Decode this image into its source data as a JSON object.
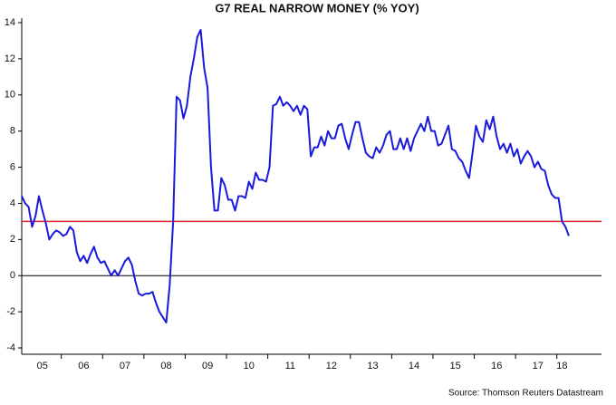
{
  "chart_data": {
    "type": "line",
    "title": "G7 REAL NARROW MONEY (% YOY)",
    "source": "Source: Thomson Reuters Datastream",
    "categories": [
      null,
      null,
      null,
      null,
      null,
      null,
      "05",
      null,
      null,
      null,
      null,
      null,
      null,
      null,
      null,
      null,
      null,
      null,
      "06",
      null,
      null,
      null,
      null,
      null,
      null,
      null,
      null,
      null,
      null,
      null,
      "07",
      null,
      null,
      null,
      null,
      null,
      null,
      null,
      null,
      null,
      null,
      null,
      "08",
      null,
      null,
      null,
      null,
      null,
      null,
      null,
      null,
      null,
      null,
      null,
      "09",
      null,
      null,
      null,
      null,
      null,
      null,
      null,
      null,
      null,
      null,
      null,
      "10",
      null,
      null,
      null,
      null,
      null,
      null,
      null,
      null,
      null,
      null,
      null,
      "11",
      null,
      null,
      null,
      null,
      null,
      null,
      null,
      null,
      null,
      null,
      null,
      "12",
      null,
      null,
      null,
      null,
      null,
      null,
      null,
      null,
      null,
      null,
      null,
      "13",
      null,
      null,
      null,
      null,
      null,
      null,
      null,
      null,
      null,
      null,
      null,
      "14",
      null,
      null,
      null,
      null,
      null,
      null,
      null,
      null,
      null,
      null,
      null,
      "15",
      null,
      null,
      null,
      null,
      null,
      null,
      null,
      null,
      null,
      null,
      null,
      "16",
      null,
      null,
      null,
      null,
      null,
      null,
      null,
      null,
      null,
      null,
      null,
      "17",
      null,
      null,
      null,
      null,
      null,
      null,
      "18",
      null,
      null
    ],
    "values": [
      4.4,
      4.0,
      3.8,
      2.7,
      3.3,
      4.4,
      3.6,
      2.9,
      2.0,
      2.3,
      2.5,
      2.4,
      2.2,
      2.3,
      2.7,
      2.5,
      1.3,
      0.8,
      1.1,
      0.7,
      1.2,
      1.6,
      1.0,
      0.7,
      0.8,
      0.4,
      0.0,
      0.3,
      0.0,
      0.4,
      0.8,
      1.0,
      0.6,
      -0.3,
      -1.0,
      -1.1,
      -1.0,
      -1.0,
      -0.9,
      -1.5,
      -2.0,
      -2.3,
      -2.6,
      -0.5,
      3.0,
      9.9,
      9.7,
      8.7,
      9.4,
      11.0,
      12.0,
      13.2,
      13.6,
      11.5,
      10.4,
      6.0,
      3.6,
      3.6,
      5.4,
      5.0,
      4.2,
      4.2,
      3.6,
      4.4,
      4.4,
      4.3,
      5.2,
      4.8,
      5.7,
      5.3,
      5.3,
      5.2,
      6.0,
      9.4,
      9.5,
      9.9,
      9.4,
      9.6,
      9.4,
      9.1,
      9.4,
      8.9,
      9.4,
      9.2,
      6.6,
      7.1,
      7.1,
      7.7,
      7.2,
      8.0,
      7.6,
      7.6,
      8.3,
      8.4,
      7.6,
      7.0,
      7.8,
      8.5,
      8.5,
      7.6,
      6.8,
      6.6,
      6.5,
      7.1,
      6.8,
      7.2,
      7.8,
      8.0,
      7.0,
      7.0,
      7.6,
      7.0,
      7.6,
      6.9,
      7.6,
      8.0,
      8.4,
      8.0,
      8.8,
      8.0,
      8.0,
      7.2,
      7.3,
      7.8,
      8.3,
      7.0,
      6.9,
      6.5,
      6.3,
      5.8,
      5.4,
      6.8,
      8.3,
      7.7,
      7.4,
      8.6,
      8.1,
      8.8,
      7.7,
      7.0,
      7.3,
      6.8,
      7.3,
      6.6,
      7.0,
      6.2,
      6.6,
      6.9,
      6.6,
      6.0,
      6.3,
      5.9,
      5.8,
      5.0,
      4.5,
      4.3,
      4.3,
      3.0,
      2.7,
      2.2
    ],
    "color": "#1a1adc",
    "reference_line": {
      "value": 3,
      "color": "#e0262c"
    },
    "ylim": [
      -4,
      14
    ],
    "yticks": [
      -4,
      -2,
      0,
      2,
      4,
      6,
      8,
      10,
      12,
      14
    ]
  }
}
